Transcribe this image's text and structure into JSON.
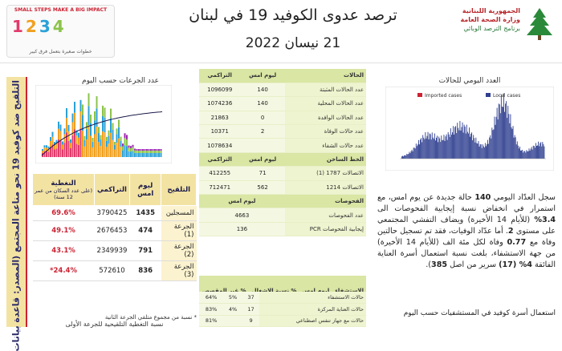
{
  "header": {
    "title": "ترصد عدوى الكوفيد 19 في لبنان",
    "date": "21 نيسان 2022",
    "ministry_line1": "الجمهورية اللبنانية",
    "ministry_line2": "وزارة الصحة العامة",
    "ministry_line3": "برنامج الترصد الوبائي",
    "logo_tagline": "SMALL STEPS MAKE A BIG IMPACT",
    "logo_footer": "خطوات صغيرة بتعمل فرق كبير",
    "logo_numbers": [
      "1",
      "2",
      "3",
      "4"
    ]
  },
  "left_banner": "التلقيح ضد كوفيد 19 نحو مناعة المجتمع (المصدر: قاعدة بيانات",
  "left_chart": {
    "title": "عدد الجرعات حسب اليوم"
  },
  "vaccine_table": {
    "headers": [
      "التلقيح",
      "ليوم امس",
      "التراكمي",
      "النغطية"
    ],
    "coverage_note": "(على عدد السكان من عمر 12 سنة)",
    "rows": [
      {
        "label": "المسجلين",
        "today": "1435",
        "cumulative": "3790425",
        "coverage": "69.6%"
      },
      {
        "label": "الجرعة (1)",
        "today": "474",
        "cumulative": "2676453",
        "coverage": "49.1%"
      },
      {
        "label": "الجرعة (2)",
        "today": "791",
        "cumulative": "2349939",
        "coverage": "43.1%"
      },
      {
        "label": "الجرعة (3)",
        "today": "836",
        "cumulative": "572610",
        "coverage": "24.4%*"
      }
    ],
    "footnote": "* نسبة من مجموع متلقي الجرعة الثانية",
    "subfoot": "نسبة التغطية التلقيحية للجرعة الأولى"
  },
  "mid_table": {
    "h_cases": "الحالات",
    "h_today": "ليوم امس",
    "h_cum": "التراكمي",
    "cases": [
      {
        "label": "عدد الحالات المثبتة",
        "today": "140",
        "cum": "1096099"
      },
      {
        "label": "عدد الحالات المحلية",
        "today": "140",
        "cum": "1074236"
      },
      {
        "label": "عدد الحالات الوافدة",
        "today": "0",
        "cum": "21863"
      },
      {
        "label": "عدد حالات الوفاة",
        "today": "2",
        "cum": "10371"
      },
      {
        "label": "عدد حالات الشفاء",
        "today": "",
        "cum": "1078634"
      }
    ],
    "h_lines": "الخط الساخن",
    "lines": [
      {
        "label": "الاتصالات 1787 (1)",
        "today": "71",
        "cum": "412255"
      },
      {
        "label": "الاتصالات 1214",
        "today": "562",
        "cum": "712471"
      }
    ],
    "h_tests": "الفحوصات",
    "tests": [
      {
        "label": "عدد الفحوصات",
        "today": "4663"
      },
      {
        "label": "إيجابية الفحوصات PCR",
        "today": "136"
      }
    ],
    "h_hosp": "الاستشفاء",
    "h_hosp_cols": [
      "ليوم امس",
      "% نسبة الاشغال",
      "% غير المقصص"
    ],
    "hosp": [
      {
        "label": "حالات الاستشفاء",
        "a": "37",
        "b": "5%",
        "c": "64%"
      },
      {
        "label": "حالات العناية المركزة",
        "a": "17",
        "b": "4%",
        "c": "83%"
      },
      {
        "label": "حالات مع جهاز تنفس اصطناعي",
        "a": "9",
        "b": "",
        "c": "81%"
      }
    ]
  },
  "right_chart": {
    "title": "العدد اليومي للحالات",
    "legend": [
      "Imported cases",
      "Local cases"
    ]
  },
  "paragraph": {
    "p1": "سجل العدّاد اليومي",
    "n1": "140",
    "p2": "حالة جديدة عن يوم امس، مع استمرار في انخفاض نسبة إيجابية الفحوصات الى",
    "n2": "3.4%",
    "p3": "(للأيام 14 الأخيرة) ويضاف التفشي المجتمعي على مستوى",
    "n3": "2",
    "p4": "أما عدّاد الوفيات، فقد تم تسجيل حالتين وفاة مع",
    "n4": "0.77",
    "p5": "وفاة لكل مئة الف (للأيام 14 الأخيرة) من جهة الاستشفاء، بلغت نسبة استعمال أسرة العناية الفائقة",
    "n5": "4% (17)",
    "p6": "سرير من اصل",
    "n6": "385",
    "bottom": "استعمال أسرة كوفيد في المستشفيات حسب اليوم"
  },
  "colors": {
    "accent_red": "#c23",
    "banner": "#f3e3a3",
    "table_green": "#d9e6a4",
    "chart_blue": "#2f3f8f"
  }
}
